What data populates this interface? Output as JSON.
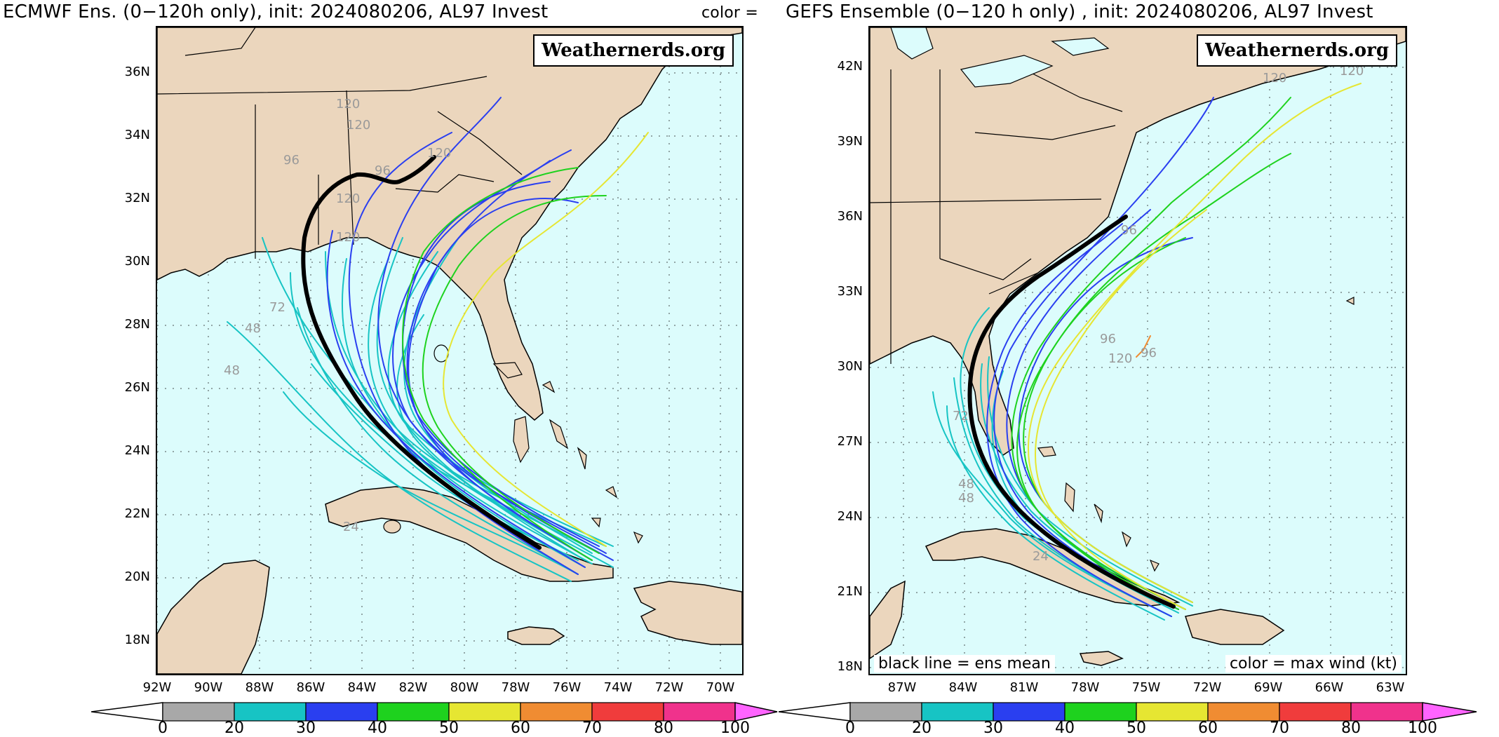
{
  "titles": {
    "left": "ECMWF Ens. (0−120h only), init: 2024080206, AL97 Invest",
    "middle": "color =",
    "right": "GEFS Ensemble (0−120 h only) , init: 2024080206, AL97 Invest"
  },
  "badge": "Weathernerds.org",
  "notes": {
    "mean": "black line = ens mean",
    "color": "color = max wind (kt)"
  },
  "left_map": {
    "lat_labels": [
      "36N",
      "34N",
      "32N",
      "30N",
      "28N",
      "26N",
      "24N",
      "22N",
      "20N",
      "18N"
    ],
    "lon_labels": [
      "92W",
      "90W",
      "88W",
      "86W",
      "84W",
      "82W",
      "80W",
      "78W",
      "76W",
      "74W",
      "72W",
      "70W"
    ],
    "lead_labels": [
      "120",
      "120",
      "96",
      "120",
      "96",
      "120",
      "120",
      "72",
      "48",
      "48",
      "24"
    ]
  },
  "right_map": {
    "lat_labels": [
      "42N",
      "39N",
      "36N",
      "33N",
      "30N",
      "27N",
      "24N",
      "21N",
      "18N"
    ],
    "lon_labels": [
      "87W",
      "84W",
      "81W",
      "78W",
      "75W",
      "72W",
      "69W",
      "66W",
      "63W"
    ],
    "lead_labels": [
      "120",
      "120",
      "96",
      "96",
      "120",
      "96",
      "72",
      "48",
      "48",
      "24"
    ]
  },
  "colorbar": {
    "ticks": [
      "0",
      "20",
      "30",
      "40",
      "50",
      "60",
      "70",
      "80",
      "100"
    ],
    "bins": [
      {
        "from": 0,
        "to": 20,
        "color": "#a8a8a8"
      },
      {
        "from": 20,
        "to": 30,
        "color": "#17c4c4"
      },
      {
        "from": 30,
        "to": 40,
        "color": "#2a3ff0"
      },
      {
        "from": 40,
        "to": 50,
        "color": "#1ed21e"
      },
      {
        "from": 50,
        "to": 60,
        "color": "#e6e632"
      },
      {
        "from": 60,
        "to": 70,
        "color": "#f08c32"
      },
      {
        "from": 70,
        "to": 80,
        "color": "#f03c3c"
      },
      {
        "from": 80,
        "to": 100,
        "color": "#f0328c"
      },
      {
        "from": 100,
        "to": null,
        "color": "#ff64ff"
      }
    ]
  },
  "colors": {
    "ocean": "#dcfcfc",
    "land": "#ebd6bd",
    "ens_mean": "#000000"
  }
}
